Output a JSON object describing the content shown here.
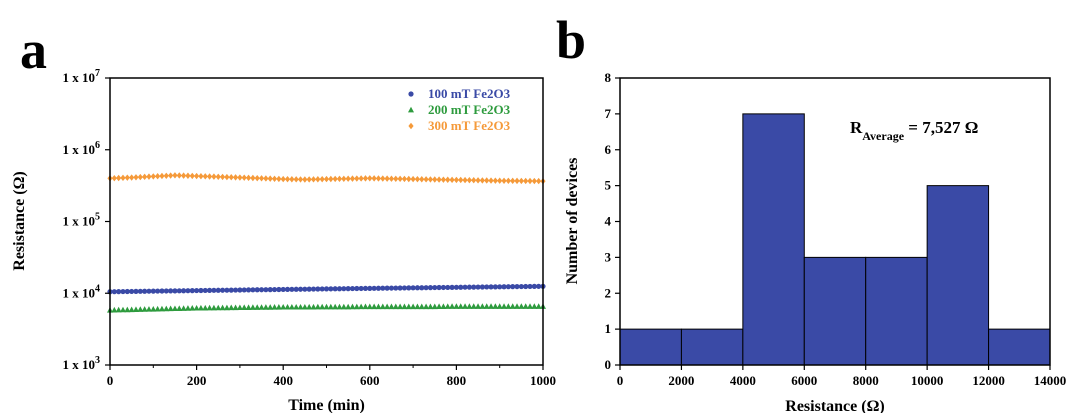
{
  "figure": {
    "panel_a_label": "a",
    "panel_b_label": "b"
  },
  "chart_data": [
    {
      "type": "scatter",
      "panel": "a",
      "xlabel": "Time (min)",
      "ylabel": "Resistance (Ω)",
      "xlim": [
        0,
        1000
      ],
      "ylim": [
        1000,
        10000000
      ],
      "y_scale": "log",
      "x_ticks": [
        0,
        200,
        400,
        600,
        800,
        1000
      ],
      "y_tick_labels": [
        "1 x 10^3",
        "1 x 10^4",
        "1 x 10^5",
        "1 x 10^6",
        "1 x 10^7"
      ],
      "legend_position": "top-right",
      "grid": false,
      "series": [
        {
          "name": "100 mT Fe2O3",
          "color": "#3a4aa6",
          "marker": "circle",
          "x": [
            0,
            50,
            100,
            150,
            200,
            250,
            300,
            350,
            400,
            450,
            500,
            550,
            600,
            650,
            700,
            750,
            800,
            850,
            900,
            950,
            1000
          ],
          "y": [
            10500,
            10600,
            10700,
            10800,
            10900,
            11000,
            11100,
            11200,
            11300,
            11400,
            11500,
            11600,
            11700,
            11800,
            11900,
            12000,
            12100,
            12200,
            12300,
            12400,
            12500
          ]
        },
        {
          "name": "200 mT Fe2O3",
          "color": "#2e9b3e",
          "marker": "triangle",
          "x": [
            0,
            50,
            100,
            150,
            200,
            250,
            300,
            350,
            400,
            450,
            500,
            550,
            600,
            650,
            700,
            750,
            800,
            850,
            900,
            950,
            1000
          ],
          "y": [
            5800,
            5900,
            6000,
            6100,
            6200,
            6250,
            6300,
            6350,
            6400,
            6400,
            6450,
            6450,
            6500,
            6500,
            6500,
            6500,
            6550,
            6550,
            6550,
            6550,
            6550
          ]
        },
        {
          "name": "300 mT Fe2O3",
          "color": "#f59a3a",
          "marker": "diamond",
          "x": [
            0,
            50,
            100,
            150,
            200,
            250,
            300,
            350,
            400,
            450,
            500,
            550,
            600,
            650,
            700,
            750,
            800,
            850,
            900,
            950,
            1000
          ],
          "y": [
            400000,
            410000,
            425000,
            440000,
            430000,
            420000,
            410000,
            400000,
            390000,
            385000,
            390000,
            395000,
            400000,
            395000,
            390000,
            385000,
            380000,
            375000,
            370000,
            368000,
            365000
          ]
        }
      ]
    },
    {
      "type": "bar",
      "panel": "b",
      "subtype": "histogram",
      "xlabel": "Resistance (Ω)",
      "ylabel": "Number of devices",
      "xlim": [
        0,
        14000
      ],
      "ylim": [
        0,
        8
      ],
      "x_ticks": [
        0,
        2000,
        4000,
        6000,
        8000,
        10000,
        12000,
        14000
      ],
      "y_ticks": [
        0,
        1,
        2,
        3,
        4,
        5,
        6,
        7,
        8
      ],
      "bar_color": "#3a4aa6",
      "bin_edges": [
        0,
        2000,
        4000,
        6000,
        8000,
        10000,
        12000,
        14000
      ],
      "values": [
        1,
        1,
        7,
        3,
        3,
        5,
        1
      ],
      "annotation": {
        "main": "R",
        "subscript": "Average",
        "value": " = 7,527 Ω"
      }
    }
  ]
}
